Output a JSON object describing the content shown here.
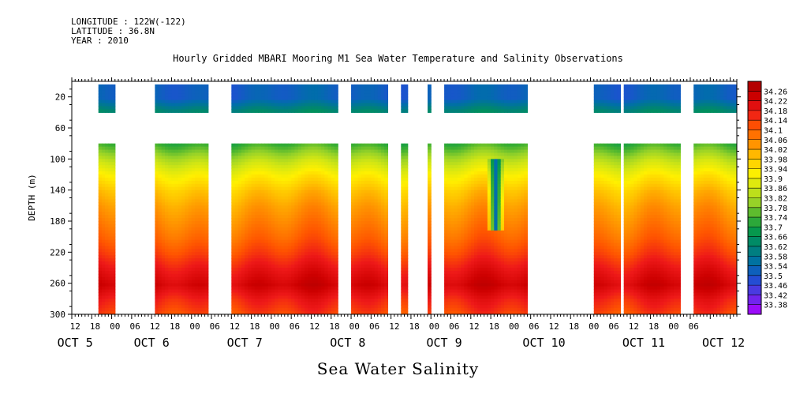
{
  "header": {
    "longitude": "LONGITUDE : 122W(-122)",
    "latitude": "LATITUDE : 36.8N",
    "year": "YEAR : 2010",
    "title": "Hourly Gridded MBARI Mooring M1 Sea Water Temperature and Salinity Observations"
  },
  "footer": {
    "variable": "Sea Water Salinity"
  },
  "chart_data": {
    "type": "heatmap",
    "title": "Hourly Gridded MBARI Mooring M1 Sea Water Temperature and Salinity Observations",
    "variable": "Sea Water Salinity",
    "ylabel": "DEPTH (m)",
    "ylim": [
      300,
      0
    ],
    "y_ticks": [
      20,
      60,
      100,
      140,
      180,
      220,
      260,
      300
    ],
    "x_hour_ticks": [
      "12",
      "18",
      "00",
      "06",
      "12",
      "18",
      "00",
      "06",
      "12",
      "18",
      "00",
      "06",
      "12",
      "18",
      "00",
      "06",
      "12",
      "18",
      "00",
      "06",
      "12",
      "18",
      "00",
      "06",
      "12",
      "18",
      "00",
      "06",
      "12",
      "18",
      "00",
      "06"
    ],
    "x_day_labels": [
      "OCT 5",
      "OCT 6",
      "OCT 7",
      "OCT 8",
      "OCT 9",
      "OCT 10",
      "OCT 11",
      "OCT 12"
    ],
    "xlim_hours": [
      0,
      200
    ],
    "colorbar": {
      "values": [
        34.26,
        34.22,
        34.18,
        34.14,
        34.1,
        34.06,
        34.02,
        33.98,
        33.94,
        33.9,
        33.86,
        33.82,
        33.78,
        33.74,
        33.7,
        33.66,
        33.62,
        33.58,
        33.54,
        33.5,
        33.46,
        33.42,
        33.38
      ],
      "min": 33.38,
      "max": 34.3
    },
    "depth_profile_upper": [
      {
        "depth": 20,
        "salinity": 33.55
      },
      {
        "depth": 40,
        "salinity": 33.68
      }
    ],
    "depth_profile_lower": [
      {
        "depth": 80,
        "salinity": 33.76
      },
      {
        "depth": 100,
        "salinity": 33.86
      },
      {
        "depth": 120,
        "salinity": 33.94
      },
      {
        "depth": 140,
        "salinity": 34.0
      },
      {
        "depth": 160,
        "salinity": 34.04
      },
      {
        "depth": 180,
        "salinity": 34.07
      },
      {
        "depth": 200,
        "salinity": 34.1
      },
      {
        "depth": 220,
        "salinity": 34.14
      },
      {
        "depth": 240,
        "salinity": 34.19
      },
      {
        "depth": 260,
        "salinity": 34.23
      },
      {
        "depth": 280,
        "salinity": 34.17
      },
      {
        "depth": 300,
        "salinity": 34.13
      }
    ],
    "data_segments_hours": [
      [
        8,
        13
      ],
      [
        25,
        41
      ],
      [
        48,
        207
      ]
    ],
    "gaps_hours": [
      [
        15,
        24
      ],
      [
        41,
        48
      ],
      [
        80,
        84
      ],
      [
        95,
        99
      ],
      [
        101,
        107
      ],
      [
        108,
        112
      ],
      [
        137,
        142
      ],
      [
        142,
        155
      ],
      [
        155,
        157
      ],
      [
        165,
        166
      ],
      [
        183,
        187
      ]
    ],
    "anomaly": {
      "hour": 127,
      "depth_range": [
        100,
        190
      ],
      "salinity": 33.58
    }
  }
}
